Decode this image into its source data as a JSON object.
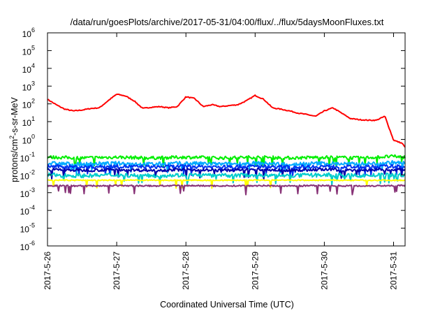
{
  "chart_data": {
    "type": "line",
    "title": "/data/run/goesPlots/archive/2017-05-31/04:00/flux/../flux/5daysMoonFluxes.txt",
    "xlabel": "Coordinated Universal Time (UTC)",
    "ylabel": "protons/cm²-s-sr-MeV",
    "ylabel_parts": {
      "pre": "protons/cm",
      "sup": "2",
      "post": "-s-sr-MeV"
    },
    "y_scale": "log",
    "ylim": [
      1e-06,
      1000000.0
    ],
    "y_ticks": [
      {
        "value": 1e-06,
        "base": "10",
        "exp": "-6"
      },
      {
        "value": 1e-05,
        "base": "10",
        "exp": "-5"
      },
      {
        "value": 0.0001,
        "base": "10",
        "exp": "-4"
      },
      {
        "value": 0.001,
        "base": "10",
        "exp": "-3"
      },
      {
        "value": 0.01,
        "base": "10",
        "exp": "-2"
      },
      {
        "value": 0.1,
        "base": "10",
        "exp": "-1"
      },
      {
        "value": 1,
        "base": "10",
        "exp": "0"
      },
      {
        "value": 10,
        "base": "10",
        "exp": "1"
      },
      {
        "value": 100,
        "base": "10",
        "exp": "2"
      },
      {
        "value": 1000.0,
        "base": "10",
        "exp": "3"
      },
      {
        "value": 10000.0,
        "base": "10",
        "exp": "4"
      },
      {
        "value": 100000.0,
        "base": "10",
        "exp": "5"
      },
      {
        "value": 1000000.0,
        "base": "10",
        "exp": "6"
      }
    ],
    "xlim": [
      "2017-05-26T00:00",
      "2017-05-31T04:00"
    ],
    "x_ticks": [
      "2017-5-26",
      "2017-5-27",
      "2017-5-28",
      "2017-5-29",
      "2017-5-30",
      "2017-5-31"
    ],
    "grid": false,
    "legend": "none",
    "series": [
      {
        "color": "#ff0000",
        "x": [
          "2017-05-26T00:00",
          "2017-05-26T03:00",
          "2017-05-26T06:00",
          "2017-05-26T09:00",
          "2017-05-26T12:00",
          "2017-05-26T15:00",
          "2017-05-26T18:00",
          "2017-05-26T21:00",
          "2017-05-27T00:00",
          "2017-05-27T03:00",
          "2017-05-27T06:00",
          "2017-05-27T09:00",
          "2017-05-27T12:00",
          "2017-05-27T15:00",
          "2017-05-27T18:00",
          "2017-05-27T21:00",
          "2017-05-28T00:00",
          "2017-05-28T03:00",
          "2017-05-28T06:00",
          "2017-05-28T09:00",
          "2017-05-28T12:00",
          "2017-05-28T15:00",
          "2017-05-28T18:00",
          "2017-05-28T21:00",
          "2017-05-29T00:00",
          "2017-05-29T03:00",
          "2017-05-29T06:00",
          "2017-05-29T09:00",
          "2017-05-29T12:00",
          "2017-05-29T15:00",
          "2017-05-29T18:00",
          "2017-05-29T21:00",
          "2017-05-30T00:00",
          "2017-05-30T03:00",
          "2017-05-30T06:00",
          "2017-05-30T09:00",
          "2017-05-30T12:00",
          "2017-05-30T15:00",
          "2017-05-30T18:00",
          "2017-05-30T21:00",
          "2017-05-31T00:00",
          "2017-05-31T03:00",
          "2017-05-31T04:00"
        ],
        "y": [
          180,
          90,
          50,
          40,
          45,
          55,
          60,
          150,
          350,
          280,
          150,
          55,
          65,
          70,
          60,
          70,
          250,
          200,
          70,
          90,
          70,
          80,
          90,
          150,
          300,
          180,
          60,
          50,
          40,
          30,
          25,
          20,
          40,
          60,
          30,
          15,
          13,
          12,
          12,
          20,
          0.9,
          0.6,
          0.35
        ]
      },
      {
        "color": "#00ee00",
        "x": [
          "2017-05-26T00:00",
          "2017-05-26T12:00",
          "2017-05-27T00:00",
          "2017-05-27T12:00",
          "2017-05-28T00:00",
          "2017-05-28T12:00",
          "2017-05-29T00:00",
          "2017-05-29T12:00",
          "2017-05-30T00:00",
          "2017-05-30T12:00",
          "2017-05-31T00:00",
          "2017-05-31T04:00"
        ],
        "y": [
          0.1,
          0.09,
          0.1,
          0.09,
          0.1,
          0.09,
          0.1,
          0.09,
          0.1,
          0.09,
          0.11,
          0.1
        ]
      },
      {
        "color": "#00aaff",
        "x": [
          "2017-05-26T00:00",
          "2017-05-26T12:00",
          "2017-05-27T00:00",
          "2017-05-27T12:00",
          "2017-05-28T00:00",
          "2017-05-28T12:00",
          "2017-05-29T00:00",
          "2017-05-29T12:00",
          "2017-05-30T00:00",
          "2017-05-30T12:00",
          "2017-05-31T00:00",
          "2017-05-31T04:00"
        ],
        "y": [
          0.045,
          0.04,
          0.045,
          0.04,
          0.045,
          0.04,
          0.045,
          0.04,
          0.045,
          0.04,
          0.05,
          0.045
        ]
      },
      {
        "color": "#0033ee",
        "x": [
          "2017-05-26T00:00",
          "2017-05-26T12:00",
          "2017-05-27T00:00",
          "2017-05-27T12:00",
          "2017-05-28T00:00",
          "2017-05-28T12:00",
          "2017-05-29T00:00",
          "2017-05-29T12:00",
          "2017-05-30T00:00",
          "2017-05-30T12:00",
          "2017-05-31T00:00",
          "2017-05-31T04:00"
        ],
        "y": [
          0.03,
          0.028,
          0.03,
          0.028,
          0.03,
          0.028,
          0.03,
          0.028,
          0.03,
          0.028,
          0.03,
          0.03
        ]
      },
      {
        "color": "#0000aa",
        "x": [
          "2017-05-26T00:00",
          "2017-05-26T12:00",
          "2017-05-27T00:00",
          "2017-05-27T12:00",
          "2017-05-28T00:00",
          "2017-05-28T12:00",
          "2017-05-29T00:00",
          "2017-05-29T12:00",
          "2017-05-30T00:00",
          "2017-05-30T12:00",
          "2017-05-31T00:00",
          "2017-05-31T04:00"
        ],
        "y": [
          0.02,
          0.018,
          0.02,
          0.018,
          0.02,
          0.018,
          0.02,
          0.018,
          0.02,
          0.018,
          0.02,
          0.02
        ]
      },
      {
        "color": "#00cccc",
        "x": [
          "2017-05-26T00:00",
          "2017-05-26T12:00",
          "2017-05-27T00:00",
          "2017-05-27T12:00",
          "2017-05-28T00:00",
          "2017-05-28T12:00",
          "2017-05-29T00:00",
          "2017-05-29T12:00",
          "2017-05-30T00:00",
          "2017-05-30T12:00",
          "2017-05-31T00:00",
          "2017-05-31T04:00"
        ],
        "y": [
          0.01,
          0.009,
          0.01,
          0.009,
          0.01,
          0.009,
          0.01,
          0.009,
          0.01,
          0.009,
          0.01,
          0.01
        ]
      },
      {
        "color": "#ffff00",
        "x": [
          "2017-05-26T00:00",
          "2017-05-26T12:00",
          "2017-05-27T00:00",
          "2017-05-27T12:00",
          "2017-05-28T00:00",
          "2017-05-28T12:00",
          "2017-05-29T00:00",
          "2017-05-29T12:00",
          "2017-05-30T00:00",
          "2017-05-30T12:00",
          "2017-05-31T00:00",
          "2017-05-31T04:00"
        ],
        "y": [
          0.005,
          0.005,
          0.005,
          0.005,
          0.005,
          0.005,
          0.005,
          0.005,
          0.005,
          0.005,
          0.005,
          0.005
        ]
      },
      {
        "color": "#883377",
        "x": [
          "2017-05-26T00:00",
          "2017-05-26T12:00",
          "2017-05-27T00:00",
          "2017-05-27T12:00",
          "2017-05-28T00:00",
          "2017-05-28T12:00",
          "2017-05-29T00:00",
          "2017-05-29T12:00",
          "2017-05-30T00:00",
          "2017-05-30T12:00",
          "2017-05-31T00:00",
          "2017-05-31T04:00"
        ],
        "y": [
          0.0025,
          0.0024,
          0.0025,
          0.0024,
          0.0025,
          0.0024,
          0.0025,
          0.0024,
          0.0025,
          0.0024,
          0.0025,
          0.0025
        ]
      }
    ]
  }
}
